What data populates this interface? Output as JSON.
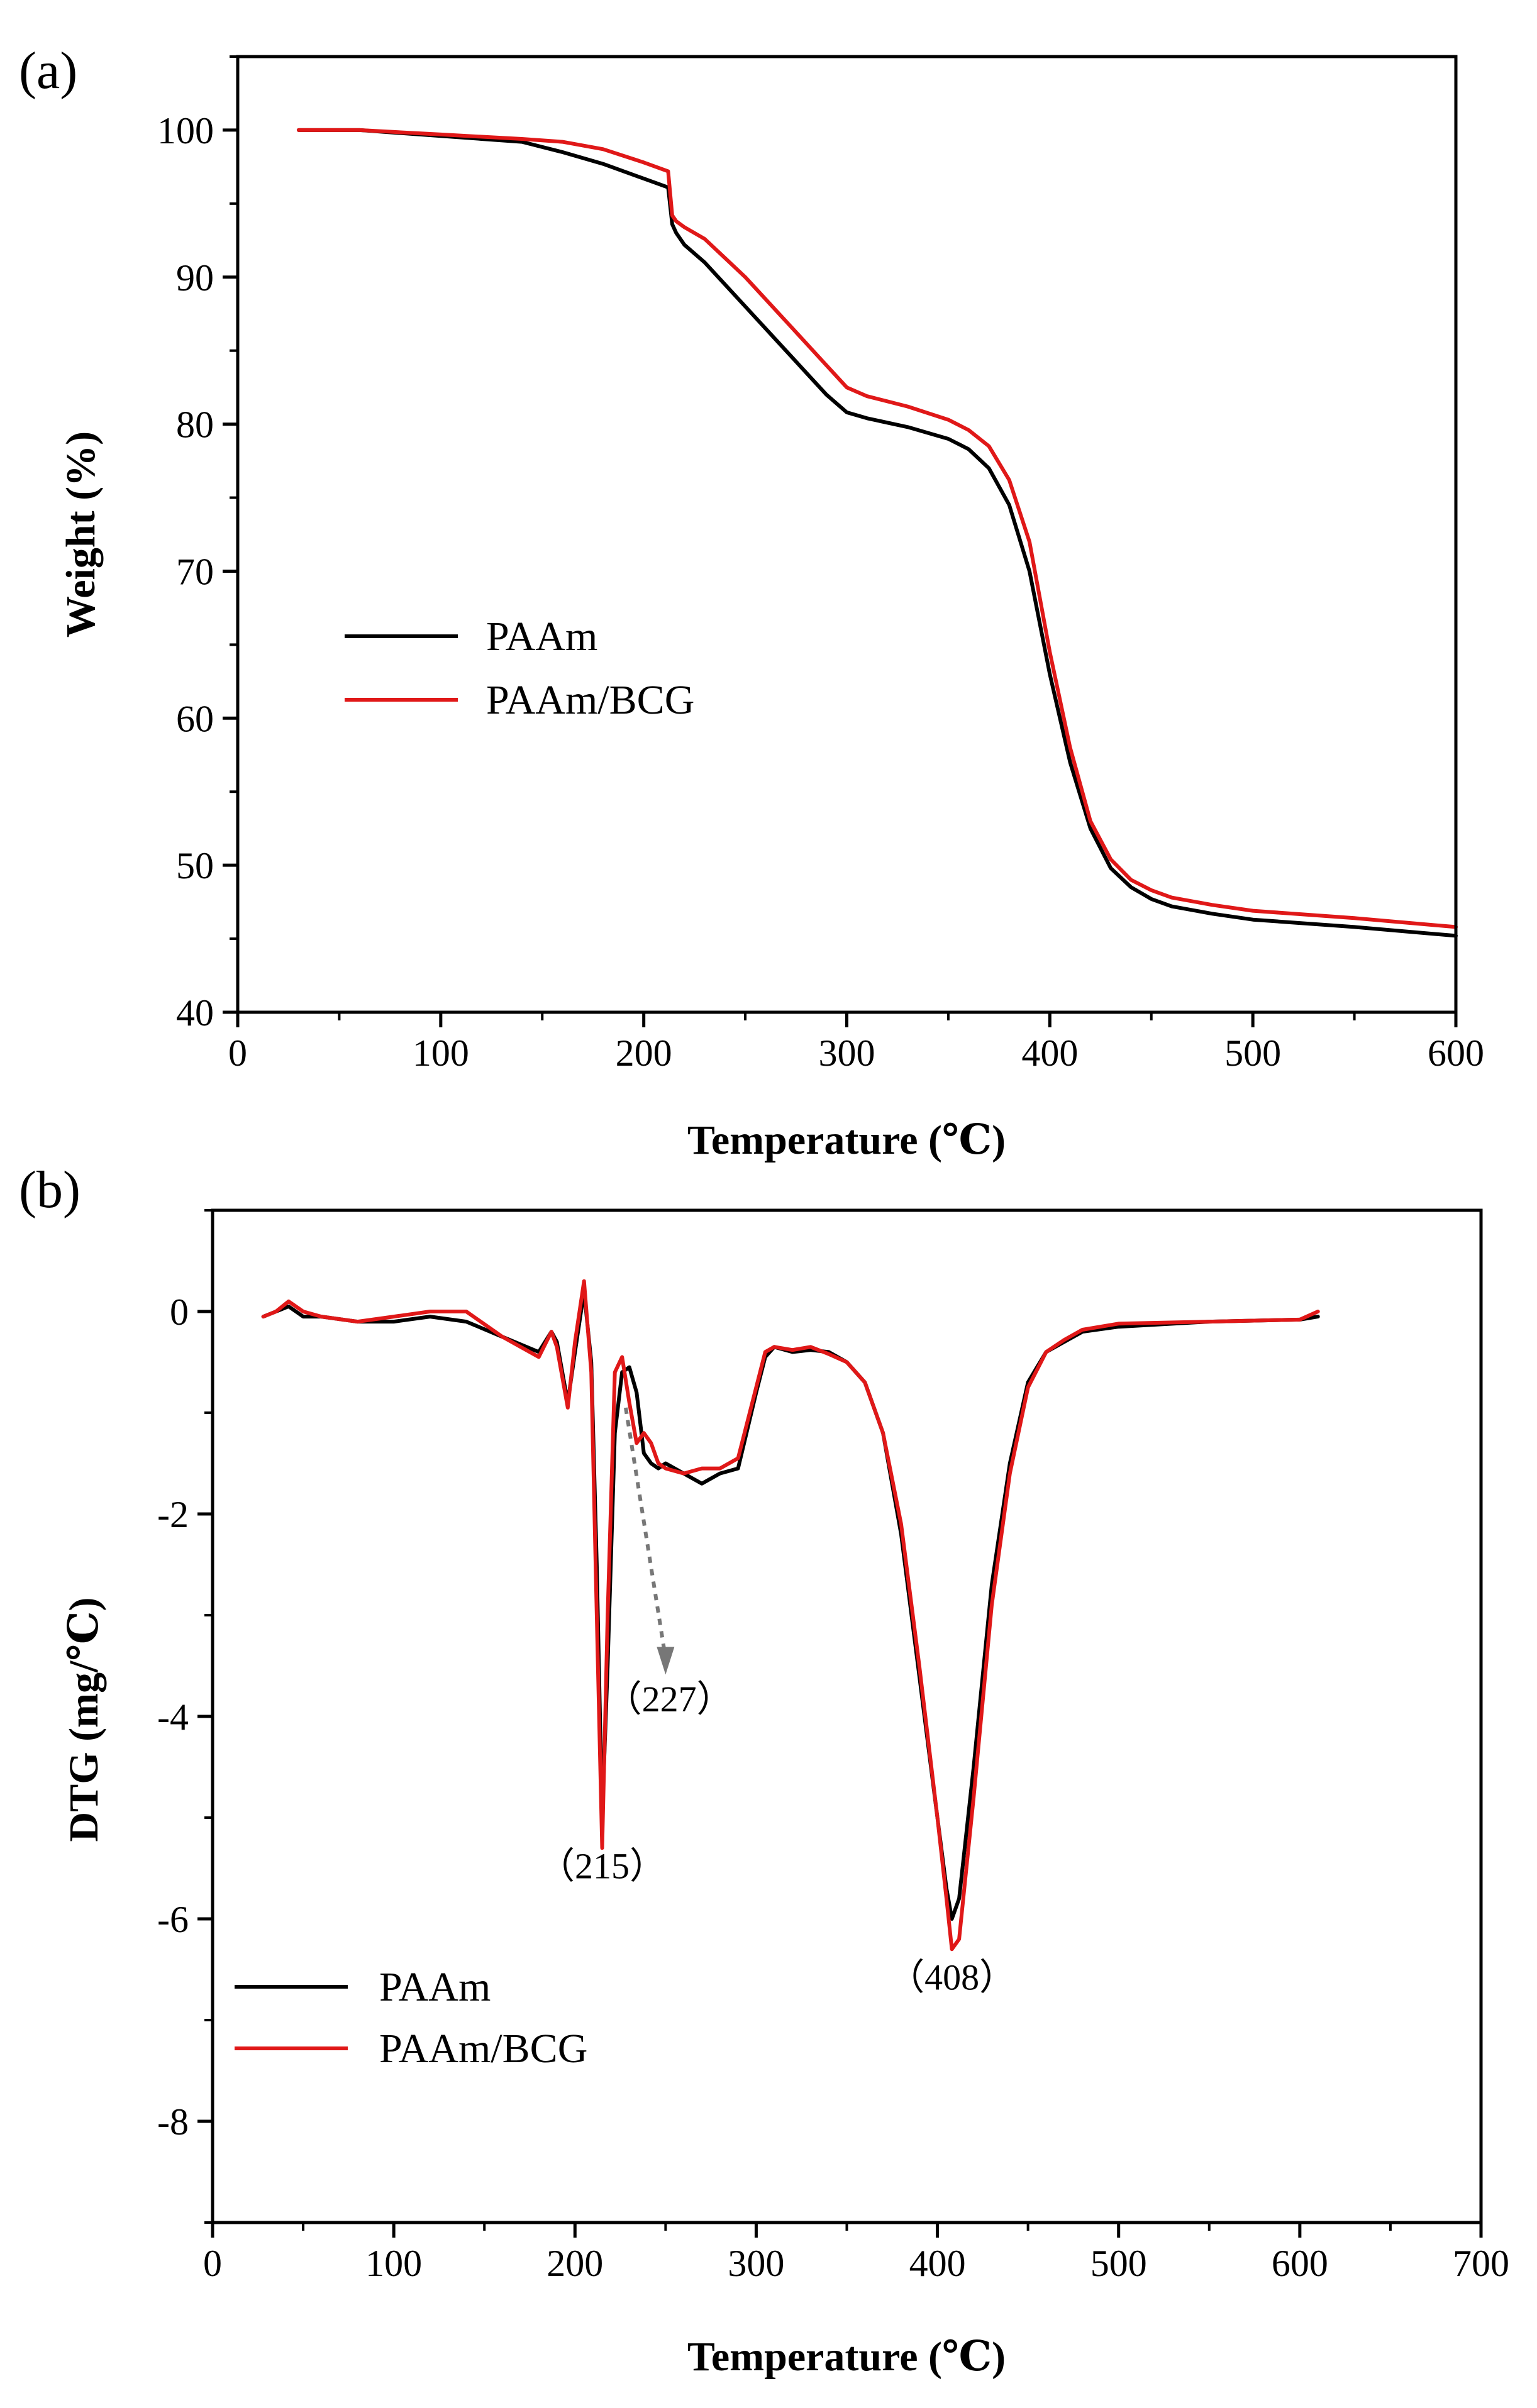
{
  "colors": {
    "paam": "#000000",
    "paam_bcg": "#e01818",
    "arrow": "#777777"
  },
  "chart_data": [
    {
      "type": "line",
      "panel_label": "(a)",
      "title": "",
      "xlabel": "Temperature (℃)",
      "ylabel": "Weight (%)",
      "xlim": [
        0,
        600
      ],
      "ylim": [
        40,
        105
      ],
      "xticks": [
        0,
        100,
        200,
        300,
        400,
        500,
        600
      ],
      "yticks": [
        40,
        50,
        60,
        70,
        80,
        90,
        100
      ],
      "xtick_labels": [
        "0",
        "100",
        "200",
        "300",
        "400",
        "500",
        "600"
      ],
      "ytick_labels": [
        "40",
        "50",
        "60",
        "70",
        "80",
        "90",
        "100"
      ],
      "grid": false,
      "legend_position": "middle-left",
      "series": [
        {
          "name": "PAAm",
          "color_key": "paam",
          "x": [
            30,
            60,
            100,
            140,
            160,
            180,
            200,
            212,
            214,
            216,
            220,
            230,
            250,
            270,
            290,
            300,
            310,
            330,
            350,
            360,
            370,
            380,
            390,
            400,
            410,
            420,
            430,
            440,
            450,
            460,
            480,
            500,
            550,
            600
          ],
          "y": [
            100,
            100,
            99.6,
            99.2,
            98.5,
            97.7,
            96.7,
            96.1,
            93.6,
            93.0,
            92.2,
            91.0,
            88.0,
            85.0,
            82.0,
            80.8,
            80.4,
            79.8,
            79.0,
            78.3,
            77.0,
            74.5,
            70.0,
            63.0,
            57.0,
            52.5,
            49.8,
            48.5,
            47.7,
            47.2,
            46.7,
            46.3,
            45.8,
            45.2
          ]
        },
        {
          "name": "PAAm/BCG",
          "color_key": "paam_bcg",
          "x": [
            30,
            60,
            100,
            140,
            160,
            180,
            200,
            212,
            214,
            216,
            220,
            230,
            250,
            270,
            290,
            300,
            310,
            330,
            350,
            360,
            370,
            380,
            390,
            400,
            410,
            420,
            430,
            440,
            450,
            460,
            480,
            500,
            550,
            600
          ],
          "y": [
            100,
            100,
            99.7,
            99.4,
            99.2,
            98.7,
            97.8,
            97.2,
            94.2,
            93.8,
            93.4,
            92.6,
            90.0,
            87.0,
            84.0,
            82.5,
            81.9,
            81.2,
            80.3,
            79.6,
            78.5,
            76.2,
            72.0,
            64.5,
            58.0,
            53.0,
            50.4,
            49.0,
            48.3,
            47.8,
            47.3,
            46.9,
            46.4,
            45.8
          ]
        }
      ]
    },
    {
      "type": "line",
      "panel_label": "(b)",
      "title": "",
      "xlabel": "Temperature (℃)",
      "ylabel": "DTG (mg/℃)",
      "xlim": [
        0,
        700
      ],
      "ylim": [
        -9,
        1
      ],
      "xticks": [
        0,
        100,
        200,
        300,
        400,
        500,
        600,
        700
      ],
      "yticks": [
        -8,
        -6,
        -4,
        -2,
        0
      ],
      "xtick_labels": [
        "0",
        "100",
        "200",
        "300",
        "400",
        "500",
        "600",
        "700"
      ],
      "ytick_labels": [
        "-8",
        "-6",
        "-4",
        "-2",
        "0"
      ],
      "grid": false,
      "legend_position": "bottom-left",
      "annotations": [
        {
          "text": "（215）",
          "x": 215,
          "y": -5.6
        },
        {
          "text": "（227）",
          "x": 252,
          "y": -3.95
        },
        {
          "text": "（408）",
          "x": 408,
          "y": -6.7
        }
      ],
      "arrow": {
        "from": [
          228,
          -0.95
        ],
        "to": [
          250,
          -3.55
        ]
      },
      "series": [
        {
          "name": "PAAm",
          "color_key": "paam",
          "x": [
            28,
            35,
            42,
            50,
            60,
            80,
            100,
            120,
            140,
            160,
            180,
            187,
            190,
            196,
            200,
            205,
            209,
            212,
            215,
            218,
            222,
            226,
            230,
            234,
            238,
            242,
            246,
            250,
            260,
            270,
            280,
            290,
            300,
            305,
            310,
            320,
            330,
            340,
            350,
            360,
            370,
            380,
            390,
            400,
            405,
            408,
            412,
            420,
            430,
            440,
            450,
            460,
            470,
            480,
            500,
            550,
            600,
            610
          ],
          "y": [
            -0.05,
            0.0,
            0.05,
            -0.05,
            -0.05,
            -0.1,
            -0.1,
            -0.05,
            -0.1,
            -0.25,
            -0.4,
            -0.2,
            -0.3,
            -0.9,
            -0.4,
            0.2,
            -0.5,
            -2.5,
            -5.0,
            -3.5,
            -1.2,
            -0.6,
            -0.55,
            -0.8,
            -1.4,
            -1.5,
            -1.55,
            -1.5,
            -1.6,
            -1.7,
            -1.6,
            -1.55,
            -0.8,
            -0.45,
            -0.35,
            -0.4,
            -0.38,
            -0.4,
            -0.5,
            -0.7,
            -1.2,
            -2.2,
            -3.6,
            -5.0,
            -5.7,
            -6.0,
            -5.8,
            -4.5,
            -2.7,
            -1.5,
            -0.7,
            -0.4,
            -0.3,
            -0.2,
            -0.15,
            -0.1,
            -0.08,
            -0.05
          ]
        },
        {
          "name": "PAAm/BCG",
          "color_key": "paam_bcg",
          "x": [
            28,
            35,
            42,
            50,
            60,
            80,
            100,
            120,
            140,
            160,
            180,
            187,
            190,
            196,
            200,
            205,
            209,
            212,
            215,
            218,
            222,
            226,
            230,
            234,
            238,
            242,
            246,
            250,
            260,
            270,
            280,
            290,
            300,
            305,
            310,
            320,
            330,
            340,
            350,
            360,
            370,
            380,
            390,
            400,
            405,
            408,
            412,
            420,
            430,
            440,
            450,
            460,
            470,
            480,
            500,
            550,
            600,
            610
          ],
          "y": [
            -0.05,
            0.0,
            0.1,
            0.0,
            -0.05,
            -0.1,
            -0.05,
            0.0,
            0.0,
            -0.25,
            -0.45,
            -0.2,
            -0.35,
            -0.95,
            -0.3,
            0.3,
            -0.6,
            -3.0,
            -5.3,
            -3.0,
            -0.6,
            -0.45,
            -0.9,
            -1.3,
            -1.2,
            -1.3,
            -1.5,
            -1.55,
            -1.6,
            -1.55,
            -1.55,
            -1.45,
            -0.75,
            -0.4,
            -0.35,
            -0.38,
            -0.35,
            -0.42,
            -0.5,
            -0.7,
            -1.2,
            -2.1,
            -3.5,
            -5.0,
            -5.8,
            -6.3,
            -6.2,
            -4.8,
            -2.9,
            -1.6,
            -0.75,
            -0.4,
            -0.28,
            -0.18,
            -0.12,
            -0.1,
            -0.08,
            0.0
          ]
        }
      ]
    }
  ]
}
